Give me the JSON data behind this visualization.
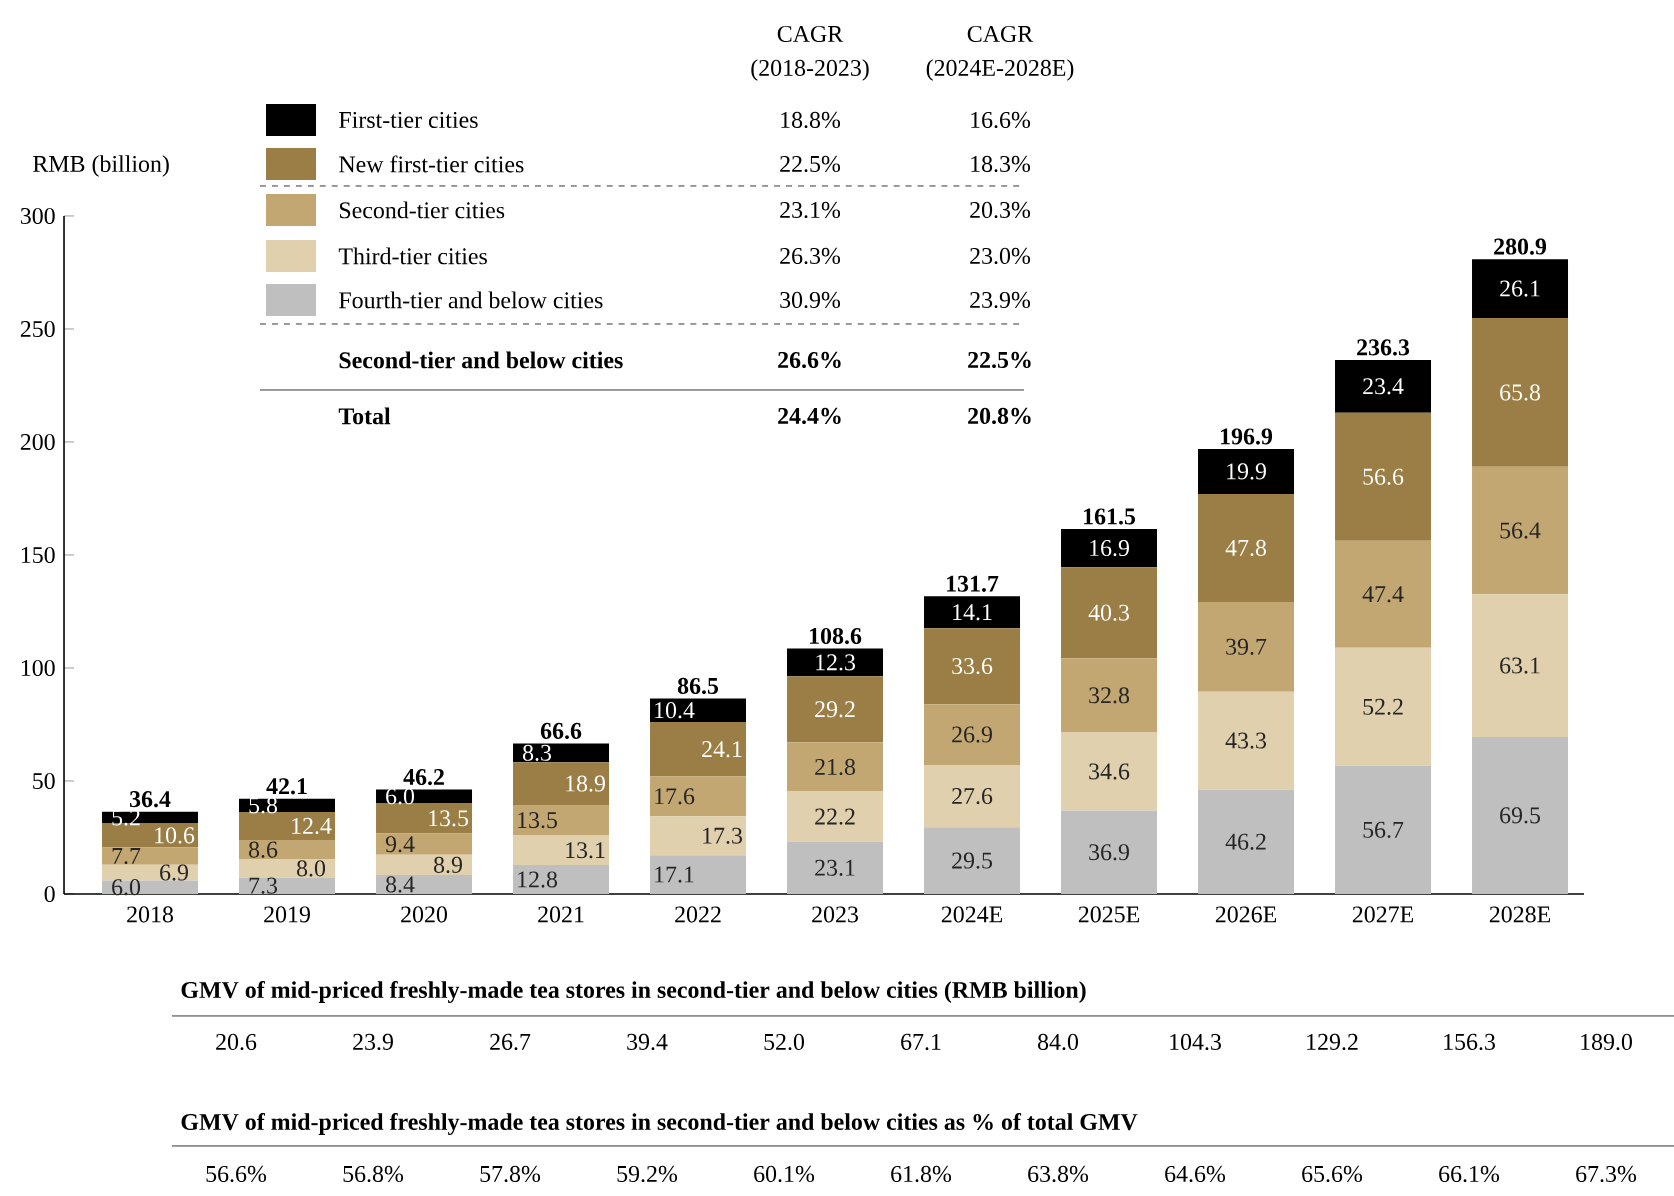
{
  "chart_data": {
    "type": "bar",
    "stacked": true,
    "legend": "top left",
    "ylabel": "RMB (billion)",
    "categories": [
      "2018",
      "2019",
      "2020",
      "2021",
      "2022",
      "2023",
      "2024E",
      "2025E",
      "2026E",
      "2027E",
      "2028E"
    ],
    "ylim": [
      0,
      300
    ],
    "yticks": [
      0,
      50,
      100,
      150,
      200,
      250,
      300
    ],
    "series": [
      {
        "name": "Fourth-tier and below cities",
        "color": "#bfbfbf",
        "values": [
          6.0,
          7.3,
          8.4,
          12.8,
          17.1,
          23.1,
          29.5,
          36.9,
          46.2,
          56.7,
          69.5
        ],
        "value_labels": [
          "6.0",
          "7.3",
          "8.4",
          "12.8",
          "17.1",
          "23.1",
          "29.5",
          "36.9",
          "46.2",
          "56.7",
          "69.5"
        ]
      },
      {
        "name": "Third-tier cities",
        "color": "#e1d0ad",
        "values": [
          6.9,
          8.0,
          8.9,
          13.1,
          17.3,
          22.2,
          27.6,
          34.6,
          43.3,
          52.2,
          63.1
        ],
        "value_labels": [
          "6.9",
          "8.0",
          "8.9",
          "13.1",
          "17.3",
          "22.2",
          "27.6",
          "34.6",
          "43.3",
          "52.2",
          "63.1"
        ]
      },
      {
        "name": "Second-tier cities",
        "color": "#c3a772",
        "values": [
          7.7,
          8.6,
          9.4,
          13.5,
          17.6,
          21.8,
          26.9,
          32.8,
          39.7,
          47.4,
          56.4
        ],
        "value_labels": [
          "7.7",
          "8.6",
          "9.4",
          "13.5",
          "17.6",
          "21.8",
          "26.9",
          "32.8",
          "39.7",
          "47.4",
          "56.4"
        ]
      },
      {
        "name": "New first-tier cities",
        "color": "#9b7e45",
        "values": [
          10.6,
          12.4,
          13.5,
          18.9,
          24.1,
          29.2,
          33.6,
          40.3,
          47.8,
          56.6,
          65.8
        ],
        "value_labels": [
          "10.6",
          "12.4",
          "13.5",
          "18.9",
          "24.1",
          "29.2",
          "33.6",
          "40.3",
          "47.8",
          "56.6",
          "65.8"
        ]
      },
      {
        "name": "First-tier cities",
        "color": "#000000",
        "values": [
          5.2,
          5.8,
          6.0,
          8.3,
          10.4,
          12.3,
          14.1,
          16.9,
          19.9,
          23.4,
          26.1
        ],
        "value_labels": [
          "5.2",
          "5.8",
          "6.0",
          "8.3",
          "10.4",
          "12.3",
          "14.1",
          "16.9",
          "19.9",
          "23.4",
          "26.1"
        ]
      }
    ],
    "totals": [
      "36.4",
      "42.1",
      "46.2",
      "66.6",
      "86.5",
      "108.6",
      "131.7",
      "161.5",
      "196.9",
      "236.3",
      "280.9"
    ],
    "annotations": [
      "CAGR",
      "(2018-2023)",
      "CAGR",
      "(2024E-2028E)",
      "18.8%",
      "16.6%",
      "22.5%",
      "18.3%",
      "23.1%",
      "20.3%",
      "26.3%",
      "23.0%",
      "30.9%",
      "23.9%",
      "Second-tier and below cities",
      "26.6%",
      "22.5%",
      "Total",
      "24.4%",
      "20.8%",
      "GMV of mid-priced freshly-made tea stores in second-tier and below cities (RMB billion)",
      "20.6",
      "23.9",
      "26.7",
      "39.4",
      "52.0",
      "67.1",
      "84.0",
      "104.3",
      "129.2",
      "156.3",
      "189.0",
      "GMV of mid-priced freshly-made tea stores in second-tier and below cities as % of total GMV",
      "56.6%",
      "56.8%",
      "57.8%",
      "59.2%",
      "60.1%",
      "61.8%",
      "63.8%",
      "64.6%",
      "65.6%",
      "66.1%",
      "67.3%"
    ]
  }
}
